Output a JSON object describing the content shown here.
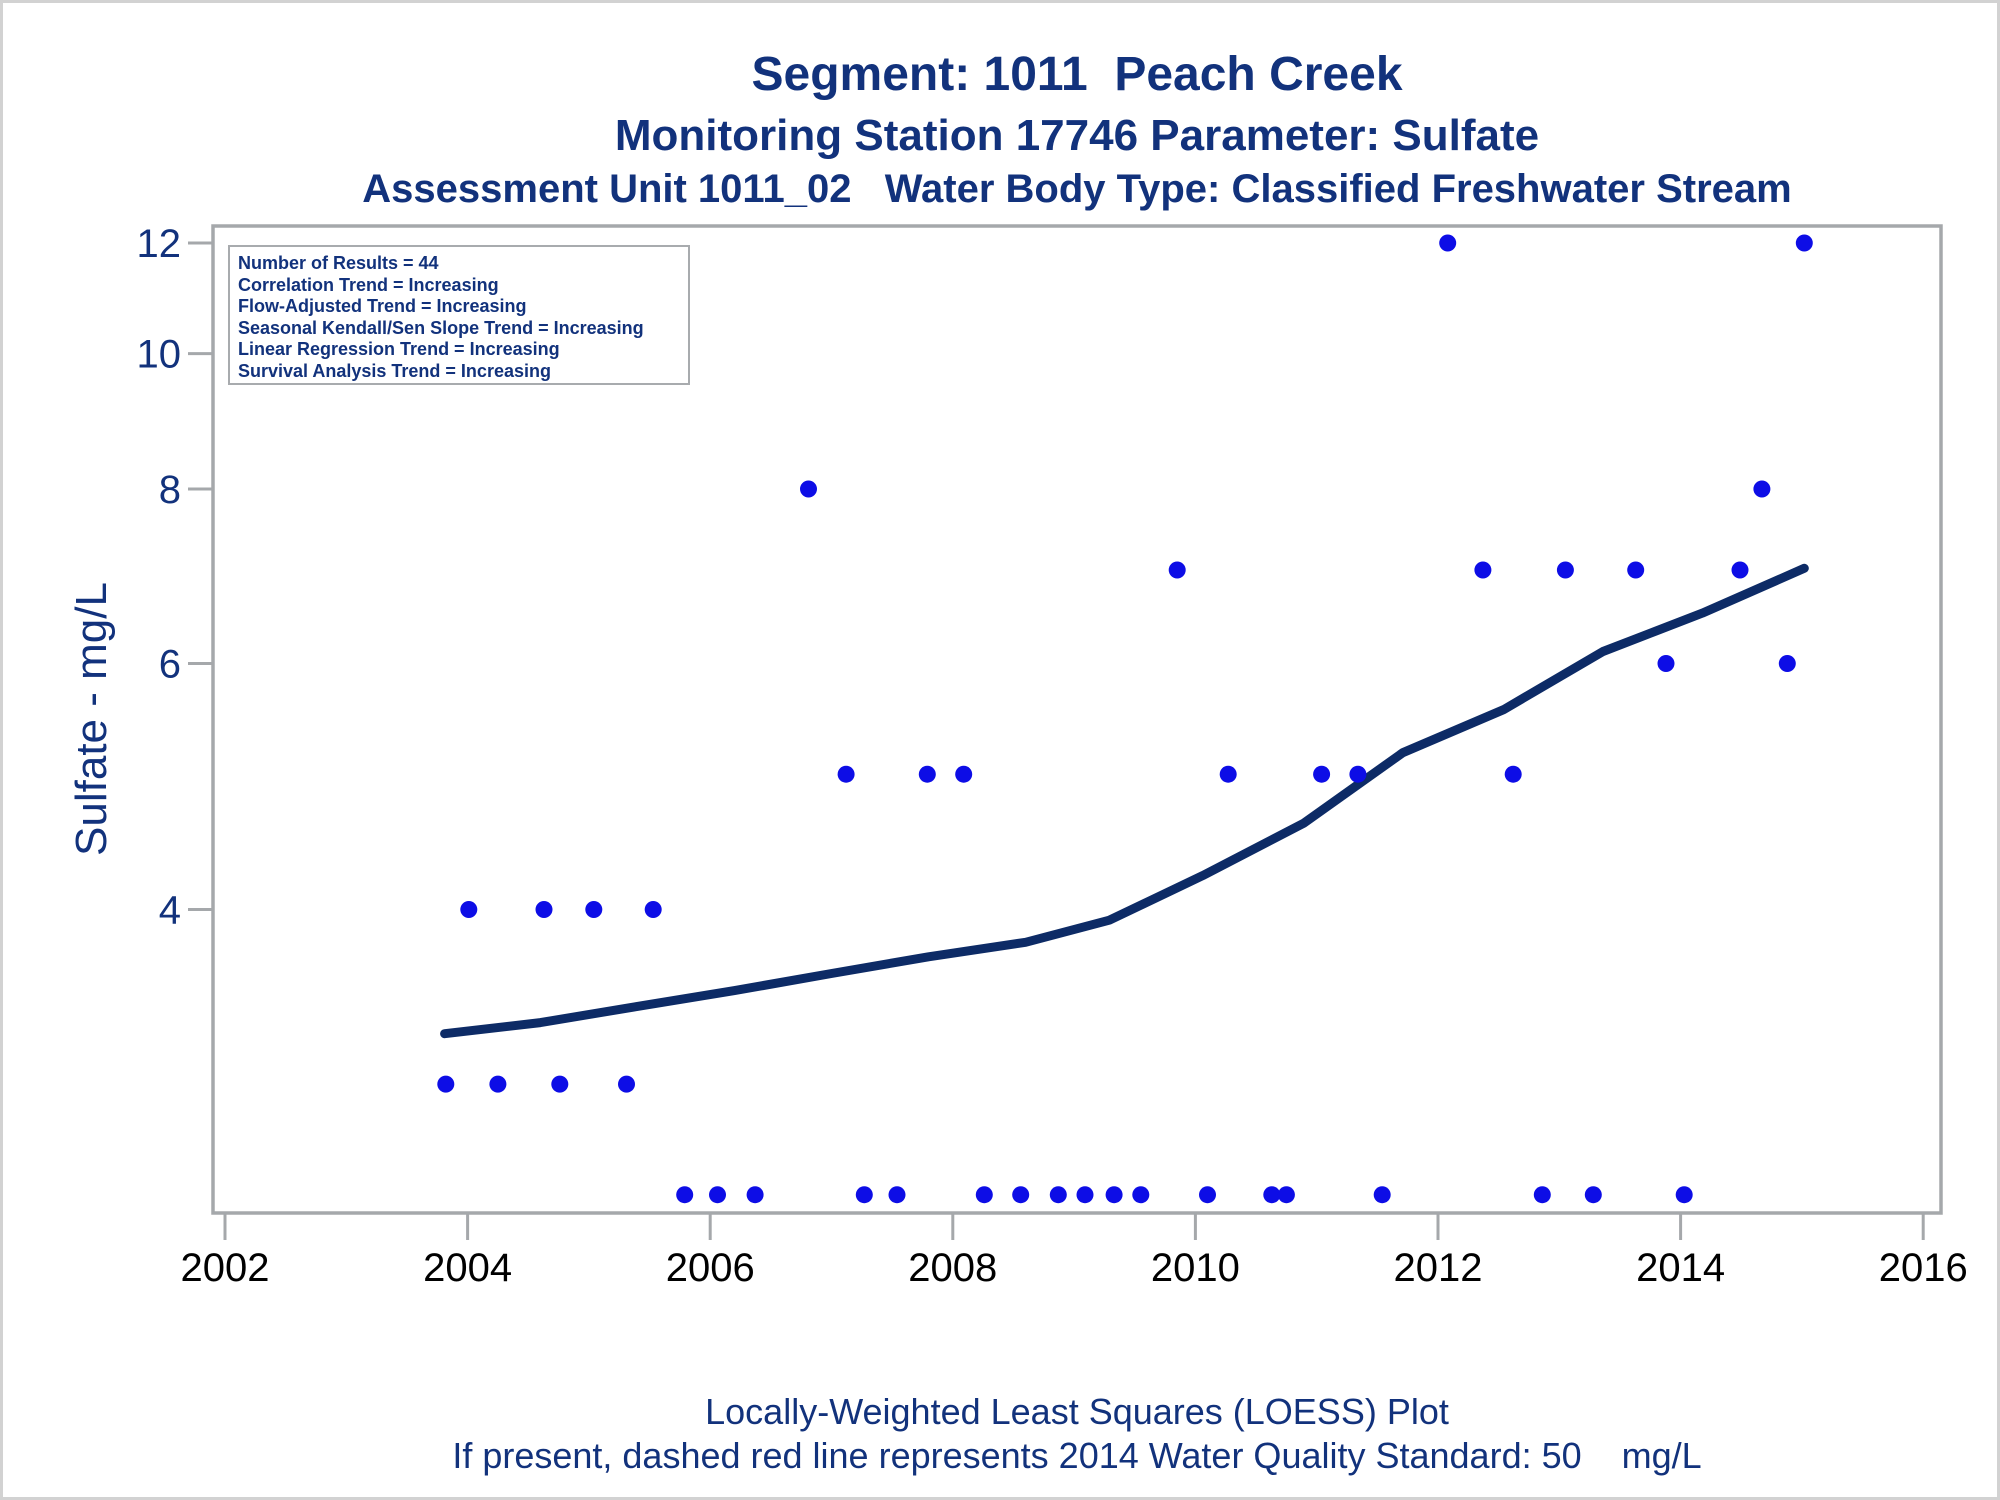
{
  "page": {
    "title_line1": "Segment: 1011  Peach Creek",
    "title_line2": "Monitoring Station 17746 Parameter: Sulfate",
    "title_line3": "Assessment Unit 1011_02   Water Body Type: Classified Freshwater Stream",
    "caption_line1": "Locally-Weighted Least Squares (LOESS) Plot",
    "caption_line2": "If present, dashed red line represents 2014 Water Quality Standard: 50    mg/L"
  },
  "stats_box": {
    "lines": [
      "Number of Results = 44",
      "Correlation Trend = Increasing",
      "Flow-Adjusted Trend = Increasing",
      "Seasonal Kendall/Sen Slope Trend = Increasing",
      "Linear Regression Trend = Increasing",
      "Survival Analysis Trend = Increasing"
    ]
  },
  "colors": {
    "navy_text": "#12327c",
    "point_blue": "#0d0de6",
    "loess_navy": "#0d2b66",
    "axis_gray": "#a5a8ab",
    "x_label_black": "#000000",
    "outer_border": "#d2d2d2"
  },
  "chart_data": {
    "type": "scatter",
    "title": "Segment: 1011  Peach Creek",
    "subtitle": "Monitoring Station 17746 Parameter: Sulfate",
    "subtitle2": "Assessment Unit 1011_02   Water Body Type: Classified Freshwater Stream",
    "xlabel": "",
    "ylabel": "Sulfate - mg/L",
    "grid": false,
    "legend_position": "none",
    "x_axis": {
      "scale": "linear",
      "range": [
        2001.9,
        2016.15
      ],
      "ticks": [
        2002,
        2004,
        2006,
        2008,
        2010,
        2012,
        2014,
        2016
      ]
    },
    "y_axis": {
      "scale": "log",
      "range": [
        2.43,
        12.34
      ],
      "ticks": [
        4,
        6,
        8,
        10,
        12
      ]
    },
    "points": [
      [
        2003.82,
        3
      ],
      [
        2004.25,
        3
      ],
      [
        2004.76,
        3
      ],
      [
        2005.31,
        3
      ],
      [
        2004.01,
        4
      ],
      [
        2004.63,
        4
      ],
      [
        2005.04,
        4
      ],
      [
        2005.53,
        4
      ],
      [
        2005.79,
        2.5
      ],
      [
        2006.06,
        2.5
      ],
      [
        2006.37,
        2.5
      ],
      [
        2007.27,
        2.5
      ],
      [
        2007.54,
        2.5
      ],
      [
        2008.26,
        2.5
      ],
      [
        2008.56,
        2.5
      ],
      [
        2008.87,
        2.5
      ],
      [
        2009.09,
        2.5
      ],
      [
        2009.33,
        2.5
      ],
      [
        2009.55,
        2.5
      ],
      [
        2010.1,
        2.5
      ],
      [
        2010.63,
        2.5
      ],
      [
        2010.75,
        2.5
      ],
      [
        2011.54,
        2.5
      ],
      [
        2012.86,
        2.5
      ],
      [
        2013.28,
        2.5
      ],
      [
        2014.03,
        2.5
      ],
      [
        2007.12,
        5
      ],
      [
        2007.79,
        5
      ],
      [
        2008.09,
        5
      ],
      [
        2010.27,
        5
      ],
      [
        2011.04,
        5
      ],
      [
        2011.34,
        5
      ],
      [
        2012.62,
        5
      ],
      [
        2006.81,
        8
      ],
      [
        2014.67,
        8
      ],
      [
        2009.85,
        7
      ],
      [
        2012.37,
        7
      ],
      [
        2013.05,
        7
      ],
      [
        2013.63,
        7
      ],
      [
        2014.49,
        7
      ],
      [
        2013.88,
        6
      ],
      [
        2014.88,
        6
      ],
      [
        2012.08,
        12
      ],
      [
        2015.02,
        12
      ]
    ],
    "loess_curve": [
      [
        2003.81,
        3.26
      ],
      [
        2004.6,
        3.32
      ],
      [
        2005.4,
        3.41
      ],
      [
        2006.2,
        3.5
      ],
      [
        2007.0,
        3.6
      ],
      [
        2007.8,
        3.7
      ],
      [
        2008.6,
        3.79
      ],
      [
        2009.29,
        3.93
      ],
      [
        2010.06,
        4.23
      ],
      [
        2010.89,
        4.61
      ],
      [
        2011.71,
        5.18
      ],
      [
        2012.54,
        5.56
      ],
      [
        2013.36,
        6.12
      ],
      [
        2014.18,
        6.52
      ],
      [
        2015.02,
        7.02
      ]
    ]
  }
}
